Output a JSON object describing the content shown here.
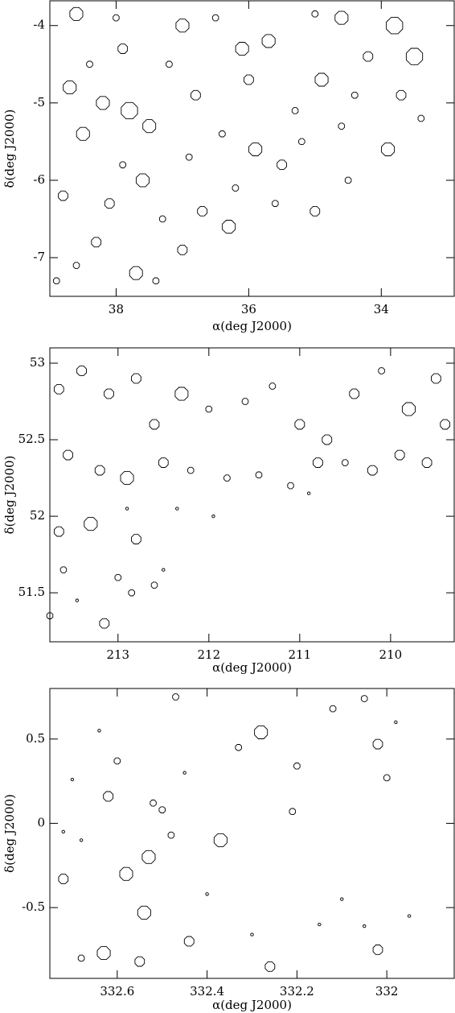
{
  "chart_data": [
    {
      "type": "scatter",
      "xlabel": "α(deg J2000)",
      "ylabel": "δ(deg J2000)",
      "xlim": [
        39.0,
        32.9
      ],
      "ylim": [
        -7.5,
        -3.68
      ],
      "xticks": [
        38,
        36,
        34
      ],
      "yticks": [
        -4,
        -5,
        -6,
        -7
      ],
      "x": [
        38.7,
        38.5,
        38.2,
        37.9,
        37.5,
        37.2,
        36.8,
        36.4,
        36.0,
        35.7,
        35.3,
        34.9,
        34.6,
        34.2,
        33.8,
        33.5,
        33.4,
        33.9,
        34.5,
        35.0,
        35.5,
        36.2,
        36.7,
        37.0,
        37.4,
        37.7,
        38.3,
        38.6,
        38.9,
        38.8,
        38.1,
        37.6,
        37.9,
        36.9,
        35.9,
        35.2,
        34.4,
        33.7,
        36.5,
        37.0,
        38.0,
        38.6,
        35.0,
        34.6,
        36.1,
        37.3,
        36.3,
        38.4,
        37.8,
        35.6
      ],
      "y": [
        -4.8,
        -5.4,
        -5.0,
        -4.3,
        -5.3,
        -4.5,
        -4.9,
        -5.4,
        -4.7,
        -4.2,
        -5.1,
        -4.7,
        -5.3,
        -4.4,
        -4.0,
        -4.4,
        -5.2,
        -5.6,
        -6.0,
        -6.4,
        -5.8,
        -6.1,
        -6.4,
        -6.9,
        -7.3,
        -7.2,
        -6.8,
        -7.1,
        -7.3,
        -6.2,
        -6.3,
        -6.0,
        -5.8,
        -5.7,
        -5.6,
        -5.5,
        -4.9,
        -4.9,
        -3.9,
        -4.0,
        -3.9,
        -3.85,
        -3.85,
        -3.9,
        -4.3,
        -6.5,
        -6.6,
        -4.5,
        -5.1,
        -6.3
      ],
      "sizes": [
        4,
        4,
        4,
        3,
        4,
        2,
        3,
        2,
        3,
        4,
        2,
        4,
        2,
        3,
        5,
        5,
        2,
        4,
        2,
        3,
        3,
        2,
        3,
        3,
        2,
        4,
        3,
        2,
        2,
        3,
        3,
        4,
        2,
        2,
        4,
        2,
        2,
        3,
        2,
        4,
        2,
        4,
        2,
        4,
        4,
        2,
        4,
        2,
        5,
        2
      ]
    },
    {
      "type": "scatter",
      "xlabel": "α(deg J2000)",
      "ylabel": "δ(deg J2000)",
      "xlim": [
        213.75,
        209.3
      ],
      "ylim": [
        51.18,
        53.1
      ],
      "xticks": [
        213,
        212,
        211,
        210
      ],
      "yticks": [
        53,
        52.5,
        52,
        51.5
      ],
      "x": [
        213.65,
        213.4,
        213.1,
        212.8,
        212.6,
        212.3,
        212.0,
        211.6,
        211.3,
        211.0,
        210.7,
        210.4,
        210.1,
        209.8,
        209.5,
        213.55,
        213.2,
        212.9,
        212.5,
        212.2,
        211.8,
        211.45,
        211.1,
        210.8,
        210.5,
        210.2,
        209.9,
        209.6,
        209.4,
        213.65,
        213.3,
        213.0,
        212.8,
        212.6,
        213.6,
        213.15,
        212.9,
        213.45,
        212.35,
        212.85,
        212.5,
        213.75,
        210.9,
        211.95
      ],
      "y": [
        52.83,
        52.95,
        52.8,
        52.9,
        52.6,
        52.8,
        52.7,
        52.75,
        52.85,
        52.6,
        52.5,
        52.8,
        52.95,
        52.7,
        52.9,
        52.4,
        52.3,
        52.25,
        52.35,
        52.3,
        52.25,
        52.27,
        52.2,
        52.35,
        52.35,
        52.3,
        52.4,
        52.35,
        52.6,
        51.9,
        51.95,
        51.6,
        51.85,
        51.55,
        51.65,
        51.3,
        52.05,
        51.45,
        52.05,
        51.5,
        51.65,
        51.35,
        52.15,
        52.0
      ],
      "sizes": [
        3,
        3,
        3,
        3,
        3,
        4,
        2,
        2,
        2,
        3,
        3,
        3,
        2,
        4,
        3,
        3,
        3,
        4,
        3,
        2,
        2,
        2,
        2,
        3,
        2,
        3,
        3,
        3,
        3,
        3,
        4,
        2,
        3,
        2,
        2,
        3,
        1,
        1,
        1,
        2,
        1,
        2,
        1,
        1
      ]
    },
    {
      "type": "scatter",
      "xlabel": "α(deg J2000)",
      "ylabel": "δ(deg J2000)",
      "xlim": [
        332.75,
        331.85
      ],
      "ylim": [
        -0.92,
        0.8
      ],
      "xticks": [
        332.6,
        332.4,
        332.2,
        332
      ],
      "yticks": [
        0.5,
        0,
        -0.5
      ],
      "x": [
        332.72,
        332.68,
        332.63,
        332.58,
        332.54,
        332.53,
        332.55,
        332.62,
        332.6,
        332.47,
        332.44,
        332.48,
        332.37,
        332.33,
        332.28,
        332.2,
        332.21,
        332.26,
        332.12,
        332.05,
        332.02,
        332.0,
        332.02,
        332.05,
        332.1,
        332.4,
        332.3,
        332.5,
        332.52,
        332.68,
        332.72,
        332.64,
        332.7,
        332.15,
        332.45,
        331.95,
        331.98
      ],
      "y": [
        -0.33,
        -0.8,
        -0.77,
        -0.3,
        -0.53,
        -0.2,
        -0.82,
        0.16,
        0.37,
        0.75,
        -0.7,
        -0.07,
        -0.1,
        0.45,
        0.54,
        0.34,
        0.07,
        -0.85,
        0.68,
        0.74,
        0.47,
        0.27,
        -0.75,
        -0.61,
        -0.45,
        -0.42,
        -0.66,
        0.08,
        0.12,
        -0.1,
        -0.05,
        0.55,
        0.26,
        -0.6,
        0.3,
        -0.55,
        0.6
      ],
      "sizes": [
        3,
        2,
        4,
        4,
        4,
        4,
        3,
        3,
        2,
        2,
        3,
        2,
        4,
        2,
        4,
        2,
        2,
        3,
        2,
        2,
        3,
        2,
        3,
        1,
        1,
        1,
        1,
        2,
        2,
        1,
        1,
        1,
        1,
        1,
        1,
        1,
        1
      ]
    }
  ]
}
